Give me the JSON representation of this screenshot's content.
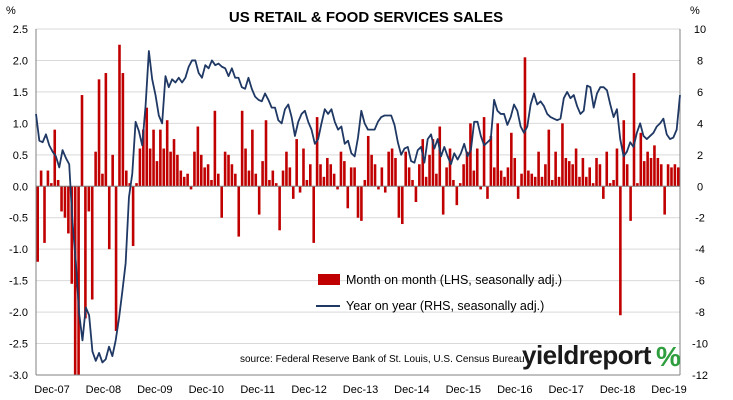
{
  "brand": {
    "name": "yieldreport",
    "symbol": "%",
    "color": "#1a1a1a",
    "symbol_color": "#2e9e3e",
    "symbol_accent": "#d4262b"
  },
  "colors": {
    "bars": "#c00000",
    "line": "#1f3864",
    "axis": "#808080",
    "grid": "#d9d9d9"
  },
  "chart_data": {
    "type": "bar+line",
    "title": "US RETAIL & FOOD SERVICES SALES",
    "left_axis": {
      "unit": "%",
      "min": -3.0,
      "max": 2.5,
      "ticks": [
        "-3.0",
        "-2.5",
        "-2.0",
        "-1.5",
        "-1.0",
        "-0.5",
        "0.0",
        "0.5",
        "1.0",
        "1.5",
        "2.0",
        "2.5"
      ]
    },
    "right_axis": {
      "unit": "%",
      "min": -12,
      "max": 10,
      "ticks": [
        "-12",
        "-10",
        "-8",
        "-6",
        "-4",
        "-2",
        "0",
        "2",
        "4",
        "6",
        "8",
        "10"
      ]
    },
    "x_axis": {
      "ticks": [
        "Dec-07",
        "Dec-08",
        "Dec-09",
        "Dec-10",
        "Dec-11",
        "Dec-12",
        "Dec-13",
        "Dec-14",
        "Dec-15",
        "Dec-16",
        "Dec-17",
        "Dec-18",
        "Dec-19"
      ]
    },
    "grid": "horizontal",
    "legend_position": "lower-right",
    "source": "source: Federal Reserve Bank of St. Louis, U.S. Census Bureau",
    "series": [
      {
        "name": "Month on month (LHS, seasonally adj.)",
        "type": "bar",
        "axis": "left",
        "values": [
          -1.2,
          0.25,
          -0.9,
          0.25,
          0.05,
          0.9,
          0.1,
          -0.4,
          -0.5,
          -0.75,
          -1.55,
          -3.0,
          -3.0,
          1.45,
          -2.1,
          -0.4,
          -1.8,
          0.55,
          1.7,
          0.2,
          1.8,
          -1.0,
          0.5,
          -2.3,
          2.25,
          1.8,
          0.25,
          0.05,
          -0.95,
          0.05,
          0.6,
          0.9,
          1.25,
          0.6,
          0.9,
          0.4,
          0.9,
          0.6,
          1.05,
          0.55,
          0.75,
          0.5,
          0.25,
          0.15,
          0.2,
          -0.05,
          0.55,
          0.95,
          0.5,
          0.3,
          0.35,
          0.1,
          1.2,
          0.2,
          -0.5,
          0.55,
          0.5,
          0.35,
          0.2,
          -0.8,
          1.2,
          0.6,
          0.25,
          0.9,
          0.2,
          -0.45,
          0.4,
          1.05,
          0.1,
          0.25,
          0.05,
          -0.7,
          0.25,
          0.55,
          0.3,
          -0.2,
          0.75,
          -0.1,
          0.6,
          0.1,
          0.35,
          -0.9,
          1.1,
          0.35,
          0.15,
          0.45,
          0.35,
          0.2,
          -0.05,
          0.55,
          0.4,
          -0.35,
          0.3,
          0.3,
          -0.5,
          -0.55,
          0.1,
          0.8,
          0.5,
          0.35,
          -0.05,
          0.3,
          -0.1,
          0.55,
          0.6,
          0.45,
          -0.5,
          -0.6,
          0.55,
          0.3,
          0.1,
          -0.25,
          0.35,
          0.75,
          0.15,
          0.5,
          0.75,
          0.2,
          0.95,
          -0.45,
          0.3,
          0.6,
          0.1,
          -0.3,
          0.05,
          0.35,
          0.55,
          1.0,
          0.25,
          0.6,
          -0.05,
          1.1,
          -0.2,
          0.8,
          0.3,
          1.0,
          0.25,
          0.15,
          0.3,
          0.85,
          0.45,
          -0.2,
          0.2,
          2.05,
          0.25,
          0.2,
          0.15,
          0.55,
          0.15,
          0.35,
          0.9,
          0.1,
          0.55,
          0.15,
          1.0,
          0.45,
          0.4,
          0.35,
          0.6,
          0.15,
          0.45,
          0.15,
          0.3,
          0.05,
          0.45,
          0.35,
          -0.2,
          0.55,
          0.05,
          0.1,
          0.6,
          -2.05,
          1.05,
          0.35,
          -0.55,
          1.8,
          0.05,
          0.85,
          0.4,
          0.55,
          0.45,
          0.65,
          0.45,
          0.35,
          -0.45,
          0.35,
          0.3,
          0.35,
          0.3
        ]
      },
      {
        "name": "Year on year (RHS, seasonally adj.)",
        "type": "line",
        "axis": "right",
        "values": [
          4.6,
          2.9,
          2.8,
          3.3,
          2.6,
          2.2,
          1.9,
          1.2,
          2.3,
          1.8,
          1.4,
          -2.3,
          -4.8,
          -8.1,
          -9.8,
          -7.7,
          -8.2,
          -10.5,
          -11.1,
          -10.6,
          -11.2,
          -11.0,
          -10.2,
          -10.8,
          -9.8,
          -8.4,
          -6.7,
          -4.9,
          -0.7,
          0.8,
          4.1,
          3.5,
          2.6,
          5.1,
          8.6,
          6.8,
          5.8,
          4.5,
          4.0,
          7.0,
          6.3,
          6.8,
          6.6,
          6.9,
          6.6,
          6.9,
          7.6,
          8.0,
          8.0,
          7.2,
          6.9,
          7.7,
          7.5,
          8.0,
          7.7,
          7.8,
          7.6,
          7.5,
          7.0,
          7.5,
          6.9,
          6.9,
          6.3,
          6.2,
          6.9,
          6.2,
          5.7,
          5.5,
          5.4,
          5.9,
          5.5,
          5.0,
          5.0,
          4.2,
          4.0,
          4.9,
          5.2,
          4.4,
          3.2,
          4.1,
          4.6,
          4.8,
          4.1,
          3.6,
          2.7,
          3.0,
          4.0,
          4.9,
          4.6,
          4.9,
          4.1,
          3.6,
          3.8,
          2.7,
          2.9,
          2.1,
          1.9,
          3.1,
          4.8,
          4.0,
          3.6,
          3.6,
          3.6,
          4.1,
          4.4,
          4.5,
          4.5,
          4.5,
          3.9,
          2.8,
          2.0,
          2.4,
          2.5,
          1.6,
          1.5,
          2.3,
          2.5,
          1.5,
          3.0,
          3.3,
          2.4,
          3.0,
          1.9,
          2.5,
          1.9,
          1.4,
          2.1,
          1.7,
          2.1,
          2.7,
          1.9,
          2.3,
          4.1,
          4.1,
          3.2,
          2.6,
          2.8,
          3.0,
          5.5,
          4.8,
          4.6,
          4.6,
          3.9,
          4.4,
          5.2,
          4.8,
          3.8,
          3.4,
          3.8,
          5.2,
          5.9,
          5.2,
          5.4,
          5.1,
          4.6,
          4.4,
          4.3,
          4.2,
          4.3,
          5.6,
          6.0,
          5.6,
          5.8,
          5.1,
          4.6,
          4.8,
          6.4,
          6.3,
          5.0,
          5.9,
          6.3,
          6.3,
          6.1,
          5.2,
          4.4,
          4.9,
          3.0,
          1.9,
          2.2,
          2.8,
          2.5,
          3.4,
          4.0,
          3.2,
          3.0,
          3.2,
          3.4,
          3.8,
          4.0,
          4.3,
          3.3,
          3.0,
          3.1,
          3.6,
          5.8
        ]
      }
    ]
  }
}
